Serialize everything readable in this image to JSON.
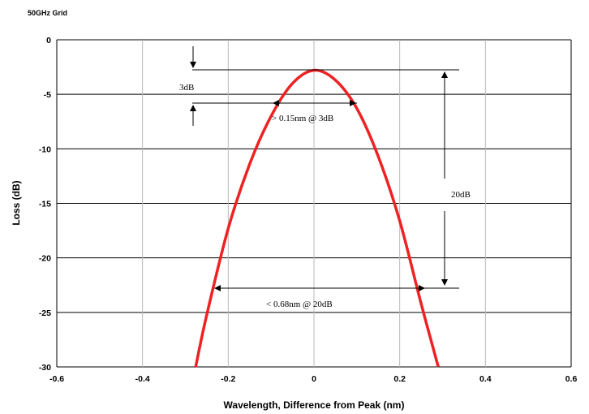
{
  "chart_data": {
    "type": "line",
    "title": "50GHz Grid",
    "xlabel": "Wavelength, Difference from Peak (nm)",
    "ylabel": "Loss (dB)",
    "xlim": [
      -0.6,
      0.6
    ],
    "ylim": [
      -30,
      0
    ],
    "x_ticks": [
      "-0.6",
      "-0.4",
      "-0.2",
      "0",
      "0.2",
      "0.4",
      "0.6"
    ],
    "y_ticks": [
      "0",
      "-5",
      "-10",
      "-15",
      "-20",
      "-25",
      "-30"
    ],
    "grid": "horizontal",
    "series": [
      {
        "color": "#ee2222",
        "x": [
          -0.276,
          -0.25,
          -0.2,
          -0.15,
          -0.1,
          -0.05,
          0,
          0.05,
          0.1,
          0.15,
          0.2,
          0.25,
          0.29
        ],
        "y": [
          -30,
          -25.2,
          -17.3,
          -11.4,
          -7.0,
          -4.0,
          -2.8,
          -3.7,
          -6.3,
          -10.7,
          -16.6,
          -24.2,
          -30
        ]
      }
    ],
    "annotations": {
      "a3db": "3dB",
      "width3": "> 0.15nm @ 3dB",
      "a20db": "20dB",
      "width20": "< 0.68nm @ 20dB"
    }
  }
}
